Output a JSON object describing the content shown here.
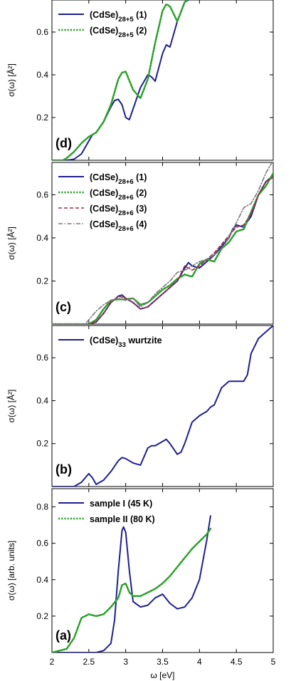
{
  "colors": {
    "series1": "#1f1f8f",
    "series2": "#2ea02c",
    "series3": "#9e2a4a",
    "series4": "#7a7a7a",
    "axis": "#000000"
  },
  "x_axis": {
    "label": "ω [eV]",
    "range": [
      2,
      5
    ],
    "ticks": [
      2,
      2.5,
      3,
      3.5,
      4,
      4.5,
      5
    ],
    "tick_labels": [
      "2",
      "2.5",
      "3",
      "3.5",
      "4",
      "4.5",
      "5"
    ]
  },
  "chart_data": [
    {
      "panel": "(d)",
      "type": "line",
      "ylabel": "σ(ω) [Å²]",
      "ylim": [
        0,
        0.75
      ],
      "yticks": [
        0.2,
        0.4,
        0.6
      ],
      "ytick_labels": [
        "0.2",
        "0.4",
        "0.6"
      ],
      "legend_position": "top-left",
      "series": [
        {
          "name": "(CdSe)28+5 (1)",
          "label_base": "(CdSe)",
          "label_sub": "28+5",
          "label_suffix": " (1)",
          "style": "solid",
          "x": [
            2.0,
            2.2,
            2.3,
            2.4,
            2.5,
            2.55,
            2.6,
            2.7,
            2.8,
            2.85,
            2.9,
            2.95,
            3.0,
            3.05,
            3.1,
            3.2,
            3.3,
            3.35,
            3.4,
            3.5,
            3.55,
            3.6,
            3.7,
            3.8,
            3.9
          ],
          "y": [
            0.0,
            0.0,
            0.005,
            0.03,
            0.09,
            0.12,
            0.13,
            0.18,
            0.25,
            0.28,
            0.285,
            0.26,
            0.2,
            0.19,
            0.24,
            0.34,
            0.4,
            0.39,
            0.37,
            0.5,
            0.54,
            0.53,
            0.65,
            0.74,
            0.76
          ]
        },
        {
          "name": "(CdSe)28+5 (2)",
          "label_base": "(CdSe)",
          "label_sub": "28+5",
          "label_suffix": " (2)",
          "style": "dotted",
          "x": [
            2.0,
            2.15,
            2.2,
            2.3,
            2.4,
            2.5,
            2.6,
            2.7,
            2.8,
            2.85,
            2.9,
            2.95,
            3.0,
            3.1,
            3.2,
            3.3,
            3.4,
            3.5,
            3.55,
            3.6,
            3.7,
            3.8,
            3.9
          ],
          "y": [
            0.0,
            0.0,
            0.01,
            0.04,
            0.08,
            0.11,
            0.13,
            0.18,
            0.26,
            0.32,
            0.38,
            0.41,
            0.415,
            0.33,
            0.29,
            0.38,
            0.55,
            0.7,
            0.73,
            0.72,
            0.65,
            0.74,
            0.77
          ]
        }
      ]
    },
    {
      "panel": "(c)",
      "type": "line",
      "ylabel": "σ(ω) [Å²]",
      "ylim": [
        0,
        0.75
      ],
      "yticks": [
        0.2,
        0.4,
        0.6
      ],
      "ytick_labels": [
        "0.2",
        "0.4",
        "0.6"
      ],
      "legend_position": "top-left",
      "series": [
        {
          "name": "(CdSe)28+6 (1)",
          "label_base": "(CdSe)",
          "label_sub": "28+6",
          "label_suffix": " (1)",
          "style": "solid",
          "x": [
            2.0,
            2.5,
            2.6,
            2.7,
            2.8,
            2.9,
            2.95,
            3.0,
            3.1,
            3.2,
            3.3,
            3.4,
            3.5,
            3.6,
            3.7,
            3.8,
            3.85,
            3.9,
            4.0,
            4.1,
            4.2,
            4.3,
            4.4,
            4.45,
            4.5,
            4.6,
            4.7,
            4.8,
            4.9,
            5.0
          ],
          "y": [
            0.0,
            0.0,
            0.01,
            0.05,
            0.1,
            0.13,
            0.135,
            0.12,
            0.1,
            0.07,
            0.08,
            0.11,
            0.14,
            0.17,
            0.2,
            0.26,
            0.285,
            0.27,
            0.26,
            0.29,
            0.32,
            0.36,
            0.4,
            0.44,
            0.46,
            0.45,
            0.5,
            0.6,
            0.66,
            0.69
          ]
        },
        {
          "name": "(CdSe)28+6 (2)",
          "label_base": "(CdSe)",
          "label_sub": "28+6",
          "label_suffix": " (2)",
          "style": "dotted",
          "x": [
            2.0,
            2.5,
            2.6,
            2.7,
            2.8,
            2.9,
            3.0,
            3.1,
            3.2,
            3.3,
            3.4,
            3.5,
            3.6,
            3.7,
            3.8,
            3.9,
            4.0,
            4.1,
            4.2,
            4.3,
            4.4,
            4.5,
            4.6,
            4.7,
            4.8,
            4.9,
            5.0
          ],
          "y": [
            0.0,
            0.0,
            0.02,
            0.07,
            0.11,
            0.115,
            0.115,
            0.12,
            0.09,
            0.1,
            0.13,
            0.16,
            0.18,
            0.21,
            0.23,
            0.22,
            0.28,
            0.3,
            0.29,
            0.35,
            0.38,
            0.43,
            0.44,
            0.52,
            0.6,
            0.64,
            0.7
          ]
        },
        {
          "name": "(CdSe)28+6 (3)",
          "label_base": "(CdSe)",
          "label_sub": "28+6",
          "label_suffix": " (3)",
          "style": "dashed",
          "x": [
            2.0,
            2.5,
            2.6,
            2.7,
            2.8,
            2.9,
            3.0,
            3.1,
            3.2,
            3.3,
            3.4,
            3.5,
            3.6,
            3.7,
            3.8,
            3.9,
            4.0,
            4.1,
            4.2,
            4.3,
            4.4,
            4.5,
            4.6,
            4.7,
            4.8,
            4.9,
            5.0
          ],
          "y": [
            0.0,
            0.0,
            0.01,
            0.05,
            0.1,
            0.13,
            0.12,
            0.1,
            0.07,
            0.08,
            0.11,
            0.14,
            0.17,
            0.2,
            0.27,
            0.25,
            0.27,
            0.3,
            0.33,
            0.37,
            0.41,
            0.45,
            0.46,
            0.51,
            0.6,
            0.66,
            0.68
          ]
        },
        {
          "name": "(CdSe)28+6 (4)",
          "label_base": "(CdSe)",
          "label_sub": "28+6",
          "label_suffix": " (4)",
          "style": "dashdot",
          "x": [
            2.0,
            2.45,
            2.5,
            2.6,
            2.7,
            2.8,
            2.9,
            3.0,
            3.1,
            3.2,
            3.3,
            3.4,
            3.5,
            3.6,
            3.7,
            3.8,
            3.9,
            4.0,
            4.1,
            4.2,
            4.3,
            4.4,
            4.5,
            4.6,
            4.7,
            4.8,
            4.9,
            5.0
          ],
          "y": [
            0.0,
            0.0,
            0.02,
            0.06,
            0.09,
            0.11,
            0.12,
            0.11,
            0.12,
            0.08,
            0.1,
            0.14,
            0.17,
            0.2,
            0.24,
            0.25,
            0.27,
            0.29,
            0.3,
            0.32,
            0.35,
            0.4,
            0.47,
            0.54,
            0.56,
            0.62,
            0.7,
            0.76
          ]
        }
      ]
    },
    {
      "panel": "(b)",
      "type": "line",
      "ylabel": "σ(ω) [Å²]",
      "ylim": [
        0,
        0.75
      ],
      "yticks": [
        0.2,
        0.4,
        0.6
      ],
      "ytick_labels": [
        "0.2",
        "0.4",
        "0.6"
      ],
      "legend_position": "top-left",
      "series": [
        {
          "name": "(CdSe)33 wurtzite",
          "label_base": "(CdSe)",
          "label_sub": "33",
          "label_suffix": " wurtzite",
          "style": "solid",
          "x": [
            2.0,
            2.3,
            2.4,
            2.5,
            2.55,
            2.6,
            2.7,
            2.8,
            2.9,
            2.95,
            3.0,
            3.1,
            3.2,
            3.3,
            3.35,
            3.4,
            3.5,
            3.55,
            3.6,
            3.7,
            3.75,
            3.8,
            3.9,
            4.0,
            4.05,
            4.1,
            4.15,
            4.2,
            4.3,
            4.4,
            4.45,
            4.5,
            4.6,
            4.65,
            4.7,
            4.8,
            4.9,
            5.0
          ],
          "y": [
            0.0,
            0.0,
            0.02,
            0.06,
            0.04,
            0.01,
            0.03,
            0.07,
            0.12,
            0.135,
            0.13,
            0.11,
            0.1,
            0.18,
            0.19,
            0.19,
            0.21,
            0.22,
            0.2,
            0.15,
            0.16,
            0.2,
            0.3,
            0.33,
            0.34,
            0.35,
            0.37,
            0.38,
            0.46,
            0.49,
            0.49,
            0.49,
            0.49,
            0.52,
            0.62,
            0.69,
            0.72,
            0.75
          ]
        }
      ]
    },
    {
      "panel": "(a)",
      "type": "line",
      "ylabel": "σ(ω) [arb. units]",
      "ylim": [
        0,
        0.9
      ],
      "yticks": [
        0.2,
        0.4,
        0.6,
        0.8
      ],
      "ytick_labels": [
        "0.2",
        "0.4",
        "0.6",
        "0.8"
      ],
      "legend_position": "top-left",
      "series": [
        {
          "name": "sample I (45 K)",
          "label_base": "sample I (45 K)",
          "label_sub": "",
          "label_suffix": "",
          "style": "solid",
          "x": [
            2.0,
            2.6,
            2.7,
            2.8,
            2.85,
            2.9,
            2.95,
            2.97,
            3.0,
            3.05,
            3.1,
            3.2,
            3.3,
            3.4,
            3.5,
            3.6,
            3.7,
            3.8,
            3.9,
            4.0,
            4.1,
            4.15
          ],
          "y": [
            0.0,
            0.0,
            0.01,
            0.05,
            0.18,
            0.45,
            0.67,
            0.69,
            0.66,
            0.45,
            0.28,
            0.25,
            0.26,
            0.3,
            0.32,
            0.27,
            0.24,
            0.25,
            0.3,
            0.4,
            0.62,
            0.75
          ]
        },
        {
          "name": "sample II (80 K)",
          "label_base": "sample II (80 K)",
          "label_sub": "",
          "label_suffix": "",
          "style": "dotted",
          "x": [
            2.0,
            2.2,
            2.3,
            2.4,
            2.5,
            2.6,
            2.7,
            2.8,
            2.9,
            2.95,
            3.0,
            3.05,
            3.1,
            3.2,
            3.3,
            3.4,
            3.5,
            3.6,
            3.7,
            3.8,
            3.9,
            4.0,
            4.1,
            4.15
          ],
          "y": [
            0.0,
            0.02,
            0.08,
            0.19,
            0.21,
            0.2,
            0.21,
            0.25,
            0.3,
            0.37,
            0.38,
            0.33,
            0.31,
            0.31,
            0.33,
            0.35,
            0.38,
            0.42,
            0.47,
            0.52,
            0.57,
            0.61,
            0.65,
            0.68
          ]
        }
      ]
    }
  ]
}
